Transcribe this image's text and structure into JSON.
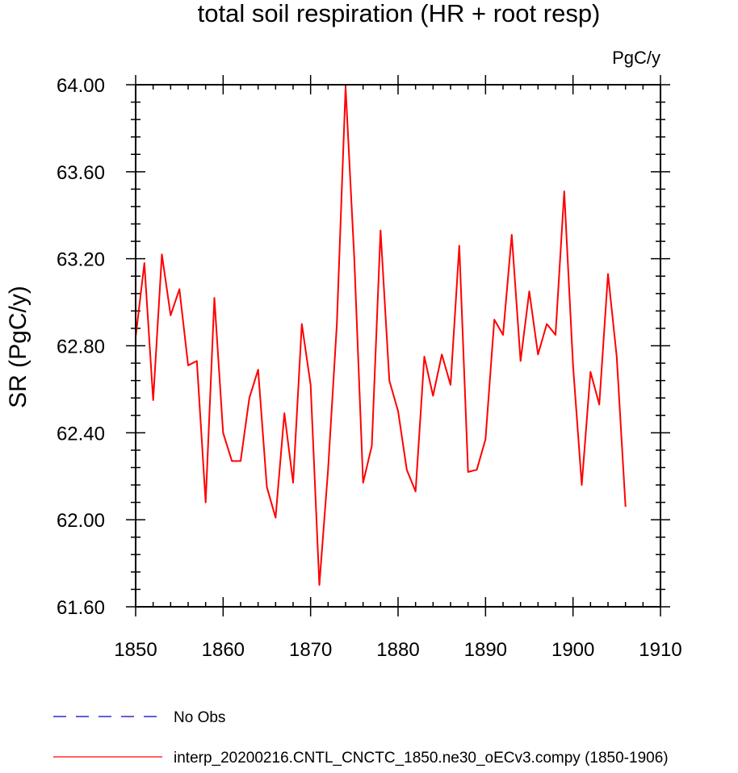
{
  "chart_data": {
    "type": "line",
    "title": "total soil respiration (HR + root resp)",
    "units_label": "PgC/y",
    "ylabel": "SR  (PgC/y)",
    "xlabel": "",
    "xlim": [
      1850,
      1910
    ],
    "ylim": [
      61.6,
      64.0
    ],
    "x_ticks": [
      1850,
      1860,
      1870,
      1880,
      1890,
      1900,
      1910
    ],
    "y_ticks": [
      61.6,
      62.0,
      62.4,
      62.8,
      63.2,
      63.6,
      64.0
    ],
    "y_tick_labels": [
      "61.60",
      "62.00",
      "62.40",
      "62.80",
      "63.20",
      "63.60",
      "64.00"
    ],
    "grid": false,
    "legend_position": "bottom-left",
    "legend": [
      {
        "label": "No Obs",
        "color": "#0000cc",
        "style": "dashed"
      },
      {
        "label": "interp_20200216.CNTL_CNCTC_1850.ne30_oECv3.compy (1850-1906)",
        "color": "#ff0000",
        "style": "solid"
      }
    ],
    "series": [
      {
        "name": "interp_20200216.CNTL_CNCTC_1850.ne30_oECv3.compy (1850-1906)",
        "color": "#ff0000",
        "x": [
          1850,
          1851,
          1852,
          1853,
          1854,
          1855,
          1856,
          1857,
          1858,
          1859,
          1860,
          1861,
          1862,
          1863,
          1864,
          1865,
          1866,
          1867,
          1868,
          1869,
          1870,
          1871,
          1872,
          1873,
          1874,
          1875,
          1876,
          1877,
          1878,
          1879,
          1880,
          1881,
          1882,
          1883,
          1884,
          1885,
          1886,
          1887,
          1888,
          1889,
          1890,
          1891,
          1892,
          1893,
          1894,
          1895,
          1896,
          1897,
          1898,
          1899,
          1900,
          1901,
          1902,
          1903,
          1904,
          1905,
          1906
        ],
        "values": [
          62.84,
          63.18,
          62.55,
          63.22,
          62.94,
          63.06,
          62.71,
          62.73,
          62.08,
          63.02,
          62.4,
          62.27,
          62.27,
          62.56,
          62.69,
          62.15,
          62.01,
          62.49,
          62.17,
          62.9,
          62.62,
          61.7,
          62.23,
          62.9,
          63.99,
          63.2,
          62.17,
          62.34,
          63.33,
          62.64,
          62.5,
          62.23,
          62.13,
          62.75,
          62.57,
          62.76,
          62.62,
          63.26,
          62.22,
          62.23,
          62.37,
          62.92,
          62.85,
          63.31,
          62.73,
          63.05,
          62.76,
          62.9,
          62.85,
          63.51,
          62.71,
          62.16,
          62.68,
          62.53,
          63.13,
          62.75,
          62.06
        ]
      }
    ]
  }
}
